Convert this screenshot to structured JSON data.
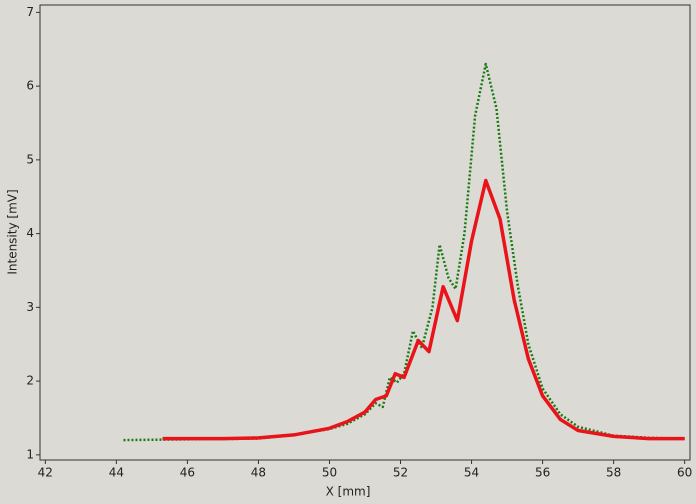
{
  "chart_data": {
    "type": "line",
    "xlabel": "X [mm]",
    "ylabel": "Intensity [mV]",
    "xlim": [
      41.85,
      60.15
    ],
    "ylim": [
      0.93,
      7.1
    ],
    "xticks": [
      42,
      44,
      46,
      48,
      50,
      52,
      54,
      56,
      58,
      60
    ],
    "yticks": [
      1,
      2,
      3,
      4,
      5,
      6,
      7
    ],
    "grid": false,
    "series": [
      {
        "color": "#1a7a12",
        "style": "dotted",
        "x": [
          44.2,
          46,
          48,
          49,
          50,
          50.5,
          51,
          51.3,
          51.5,
          51.7,
          51.9,
          52.1,
          52.35,
          52.6,
          52.9,
          53.1,
          53.35,
          53.55,
          53.8,
          54.1,
          54.4,
          54.7,
          55,
          55.3,
          55.6,
          56,
          56.5,
          57,
          58,
          59,
          60
        ],
        "values": [
          1.2,
          1.21,
          1.22,
          1.27,
          1.35,
          1.42,
          1.55,
          1.7,
          1.65,
          2.05,
          1.98,
          2.1,
          2.68,
          2.45,
          3.0,
          3.85,
          3.4,
          3.25,
          4.0,
          5.6,
          6.3,
          5.7,
          4.3,
          3.3,
          2.5,
          1.9,
          1.55,
          1.38,
          1.26,
          1.23,
          1.22
        ]
      },
      {
        "color": "#e8141a",
        "style": "solid",
        "x": [
          45.3,
          47,
          48,
          49,
          50,
          50.5,
          51,
          51.3,
          51.6,
          51.85,
          52.1,
          52.5,
          52.8,
          53.2,
          53.6,
          54,
          54.4,
          54.8,
          55.2,
          55.6,
          56,
          56.5,
          57,
          58,
          59,
          60
        ],
        "values": [
          1.22,
          1.22,
          1.23,
          1.27,
          1.36,
          1.45,
          1.58,
          1.75,
          1.8,
          2.1,
          2.05,
          2.55,
          2.4,
          3.28,
          2.82,
          3.9,
          4.72,
          4.2,
          3.1,
          2.3,
          1.8,
          1.48,
          1.33,
          1.25,
          1.22,
          1.22
        ]
      }
    ]
  }
}
